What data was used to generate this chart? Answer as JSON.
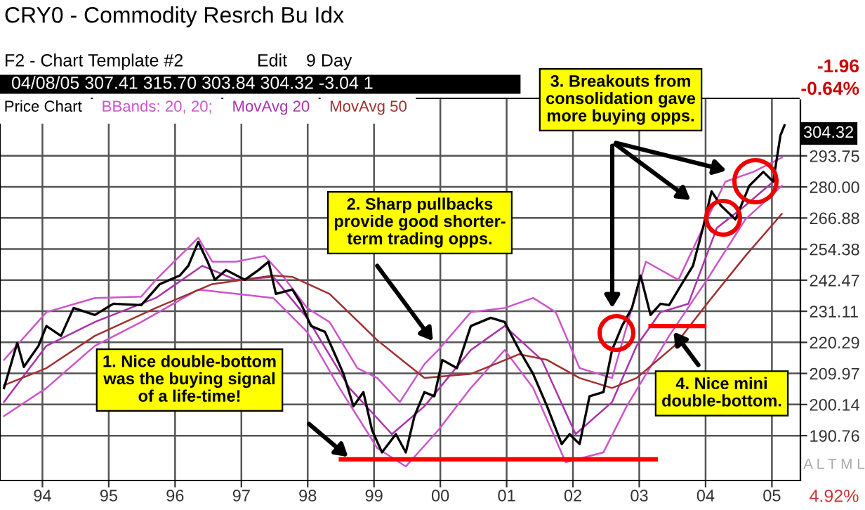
{
  "chart_data": {
    "type": "line",
    "title": "CRY0 - Commodity Resrch Bu Idx",
    "subtitle": "04/08/05 307.41 315.70 303.84 304.32 -3.04 1",
    "log": "y",
    "grid": true,
    "legend": "top left",
    "xlim": [
      1993.36,
      2005.43
    ],
    "ylim": [
      178,
      321
    ],
    "xticks": [
      {
        "value": 1994,
        "label": "94"
      },
      {
        "value": 1995,
        "label": "95"
      },
      {
        "value": 1996,
        "label": "96"
      },
      {
        "value": 1997,
        "label": "97"
      },
      {
        "value": 1998,
        "label": "98"
      },
      {
        "value": 1999,
        "label": "99"
      },
      {
        "value": 2000,
        "label": "00"
      },
      {
        "value": 2001,
        "label": "01"
      },
      {
        "value": 2002,
        "label": "02"
      },
      {
        "value": 2003,
        "label": "03"
      },
      {
        "value": 2004,
        "label": "04"
      },
      {
        "value": 2005,
        "label": "05"
      }
    ],
    "yticks": [
      {
        "value": 190.76,
        "label": "190.76"
      },
      {
        "value": 200.14,
        "label": "200.14"
      },
      {
        "value": 209.97,
        "label": "209.97"
      },
      {
        "value": 220.29,
        "label": "220.29"
      },
      {
        "value": 231.11,
        "label": "231.11"
      },
      {
        "value": 242.47,
        "label": "242.47"
      },
      {
        "value": 254.38,
        "label": "254.38"
      },
      {
        "value": 266.88,
        "label": "266.88"
      },
      {
        "value": 280,
        "label": "280.00"
      },
      {
        "value": 293.75,
        "label": "293.75"
      }
    ],
    "series": [
      {
        "name": "Price Chart",
        "color": "#000000",
        "x": [
          1993.42,
          1993.62,
          1993.72,
          1993.94,
          1994.06,
          1994.28,
          1994.47,
          1994.79,
          1995.07,
          1995.49,
          1995.64,
          1995.77,
          1996.07,
          1996.2,
          1996.35,
          1996.49,
          1996.6,
          1996.77,
          1997.05,
          1997.26,
          1997.41,
          1997.52,
          1997.77,
          1997.9,
          1998.05,
          1998.26,
          1998.41,
          1998.54,
          1998.69,
          1998.84,
          1998.97,
          1999.12,
          1999.33,
          1999.48,
          1999.61,
          1999.76,
          1999.91,
          2000.03,
          2000.25,
          2000.46,
          2000.76,
          2000.97,
          2001.19,
          2001.4,
          2001.61,
          2001.83,
          2001.95,
          2002.1,
          2002.25,
          2002.46,
          2002.59,
          2002.74,
          2002.89,
          2003.02,
          2003.17,
          2003.32,
          2003.45,
          2003.64,
          2003.81,
          2003.96,
          2004.09,
          2004.23,
          2004.45,
          2004.66,
          2004.87,
          2005.02,
          2005.13,
          2005.19
        ],
        "values": [
          205.3,
          220.1,
          212.1,
          219.1,
          225.9,
          222.5,
          232.3,
          229.8,
          233.8,
          233.3,
          237.4,
          241.0,
          244.2,
          247.9,
          257.2,
          249.5,
          242.6,
          246.3,
          242.6,
          246.3,
          249.5,
          237.4,
          239.0,
          233.8,
          225.9,
          223.9,
          216.3,
          209.8,
          199.6,
          204.0,
          192.4,
          185.9,
          191.2,
          185.9,
          196.6,
          204.0,
          202.7,
          214.4,
          211.7,
          225.9,
          228.8,
          227.3,
          217.7,
          209.8,
          199.6,
          188.3,
          191.2,
          188.3,
          202.7,
          204.0,
          217.7,
          225.9,
          232.3,
          244.2,
          229.8,
          233.8,
          233.3,
          241.0,
          247.9,
          262.8,
          278.1,
          272.1,
          266.3,
          280.5,
          286.6,
          282.3,
          303.3,
          307.9
        ]
      },
      {
        "name": "BBands: 20, 20;",
        "color": "#cc55cc",
        "x": [
          1993.42,
          1994.06,
          1994.79,
          1995.49,
          1995.71,
          1996.35,
          1996.56,
          1996.92,
          1997.35,
          1997.62,
          1997.99,
          1998.33,
          1998.75,
          1999.05,
          1999.39,
          1999.76,
          1999.97,
          2000.46,
          2000.97,
          2001.4,
          2001.74,
          2002.1,
          2002.59,
          2002.89,
          2003.1,
          2003.59,
          2004.02,
          2004.3,
          2004.72,
          2005.15
        ],
        "values": [
          214.4,
          230.8,
          235.9,
          236.4,
          242.6,
          258.9,
          249.5,
          249.5,
          251.7,
          244.2,
          232.3,
          227.3,
          211.7,
          208.5,
          200.9,
          213.0,
          217.7,
          230.8,
          232.3,
          235.9,
          230.8,
          211.7,
          208.5,
          232.3,
          249.5,
          242.6,
          266.3,
          282.3,
          286.6,
          292.9
        ]
      },
      {
        "color": "#cc55cc",
        "x": [
          1993.42,
          1994.06,
          1994.79,
          1995.49,
          1996.35,
          1996.92,
          1997.48,
          1997.99,
          1998.48,
          1999.05,
          1999.48,
          1999.97,
          2000.46,
          2000.97,
          2001.4,
          2001.89,
          2002.46,
          2002.81,
          2003.45,
          2004.02,
          2004.6,
          2005.15
        ],
        "values": [
          196.6,
          205.3,
          219.1,
          227.3,
          239.0,
          237.4,
          235.9,
          223.9,
          205.3,
          187.1,
          181.9,
          192.4,
          205.3,
          217.7,
          205.3,
          183.1,
          185.9,
          199.6,
          222.5,
          242.6,
          266.3,
          280.5
        ]
      },
      {
        "name": "MovAvg 20",
        "color": "#aa33aa",
        "x": [
          1993.42,
          1994.06,
          1994.79,
          1995.71,
          1996.41,
          1996.92,
          1997.48,
          1997.99,
          1998.63,
          1999.27,
          1999.76,
          2000.46,
          2000.97,
          2001.53,
          2002.04,
          2002.59,
          2002.96,
          2003.32,
          2003.74,
          2004.17,
          2004.6,
          2005.02
        ],
        "values": [
          200.9,
          219.1,
          227.3,
          235.9,
          247.9,
          242.6,
          243.7,
          228.8,
          205.3,
          191.2,
          199.6,
          217.7,
          225.9,
          214.4,
          191.2,
          200.9,
          219.1,
          230.8,
          233.8,
          262.8,
          272.1,
          282.3
        ]
      },
      {
        "name": "MovAvg 50",
        "color": "#a03030",
        "x": [
          1993.42,
          1994.06,
          1994.79,
          1995.71,
          1996.56,
          1997.48,
          1997.77,
          1998.33,
          1999.05,
          1999.76,
          2000.46,
          2001.19,
          2001.61,
          2002.1,
          2002.59,
          2002.96,
          2003.53,
          2004.02,
          2004.6,
          2005.15
        ],
        "values": [
          206.2,
          211.7,
          222.5,
          232.3,
          241.0,
          244.2,
          243.7,
          237.4,
          221.0,
          208.5,
          209.8,
          216.3,
          214.4,
          208.5,
          205.3,
          208.5,
          219.1,
          233.8,
          251.7,
          268.6
        ]
      },
      {
        "color": "#ff0000",
        "x": [
          1998.5,
          2003.25
        ],
        "values": [
          183.9,
          183.9
        ]
      },
      {
        "color": "#ff0000",
        "x": [
          2003.17,
          2003.98
        ],
        "values": [
          225.9,
          225.9
        ]
      }
    ],
    "annotations": [
      "F2 - Chart Template #2",
      "Edit",
      "9 Day",
      "-1.96",
      "-0.64%",
      "1. Nice double-bottom\nwas the buying signal\nof a life-time!",
      "2. Sharp pullbacks\nprovide good shorter-\nterm trading opps.",
      "3. Breakouts from\nconsolidation gave\nmore buying opps.",
      "4. Nice mini\ndouble-bottom.",
      "304.32",
      "A L T M L",
      "4.92%"
    ]
  }
}
